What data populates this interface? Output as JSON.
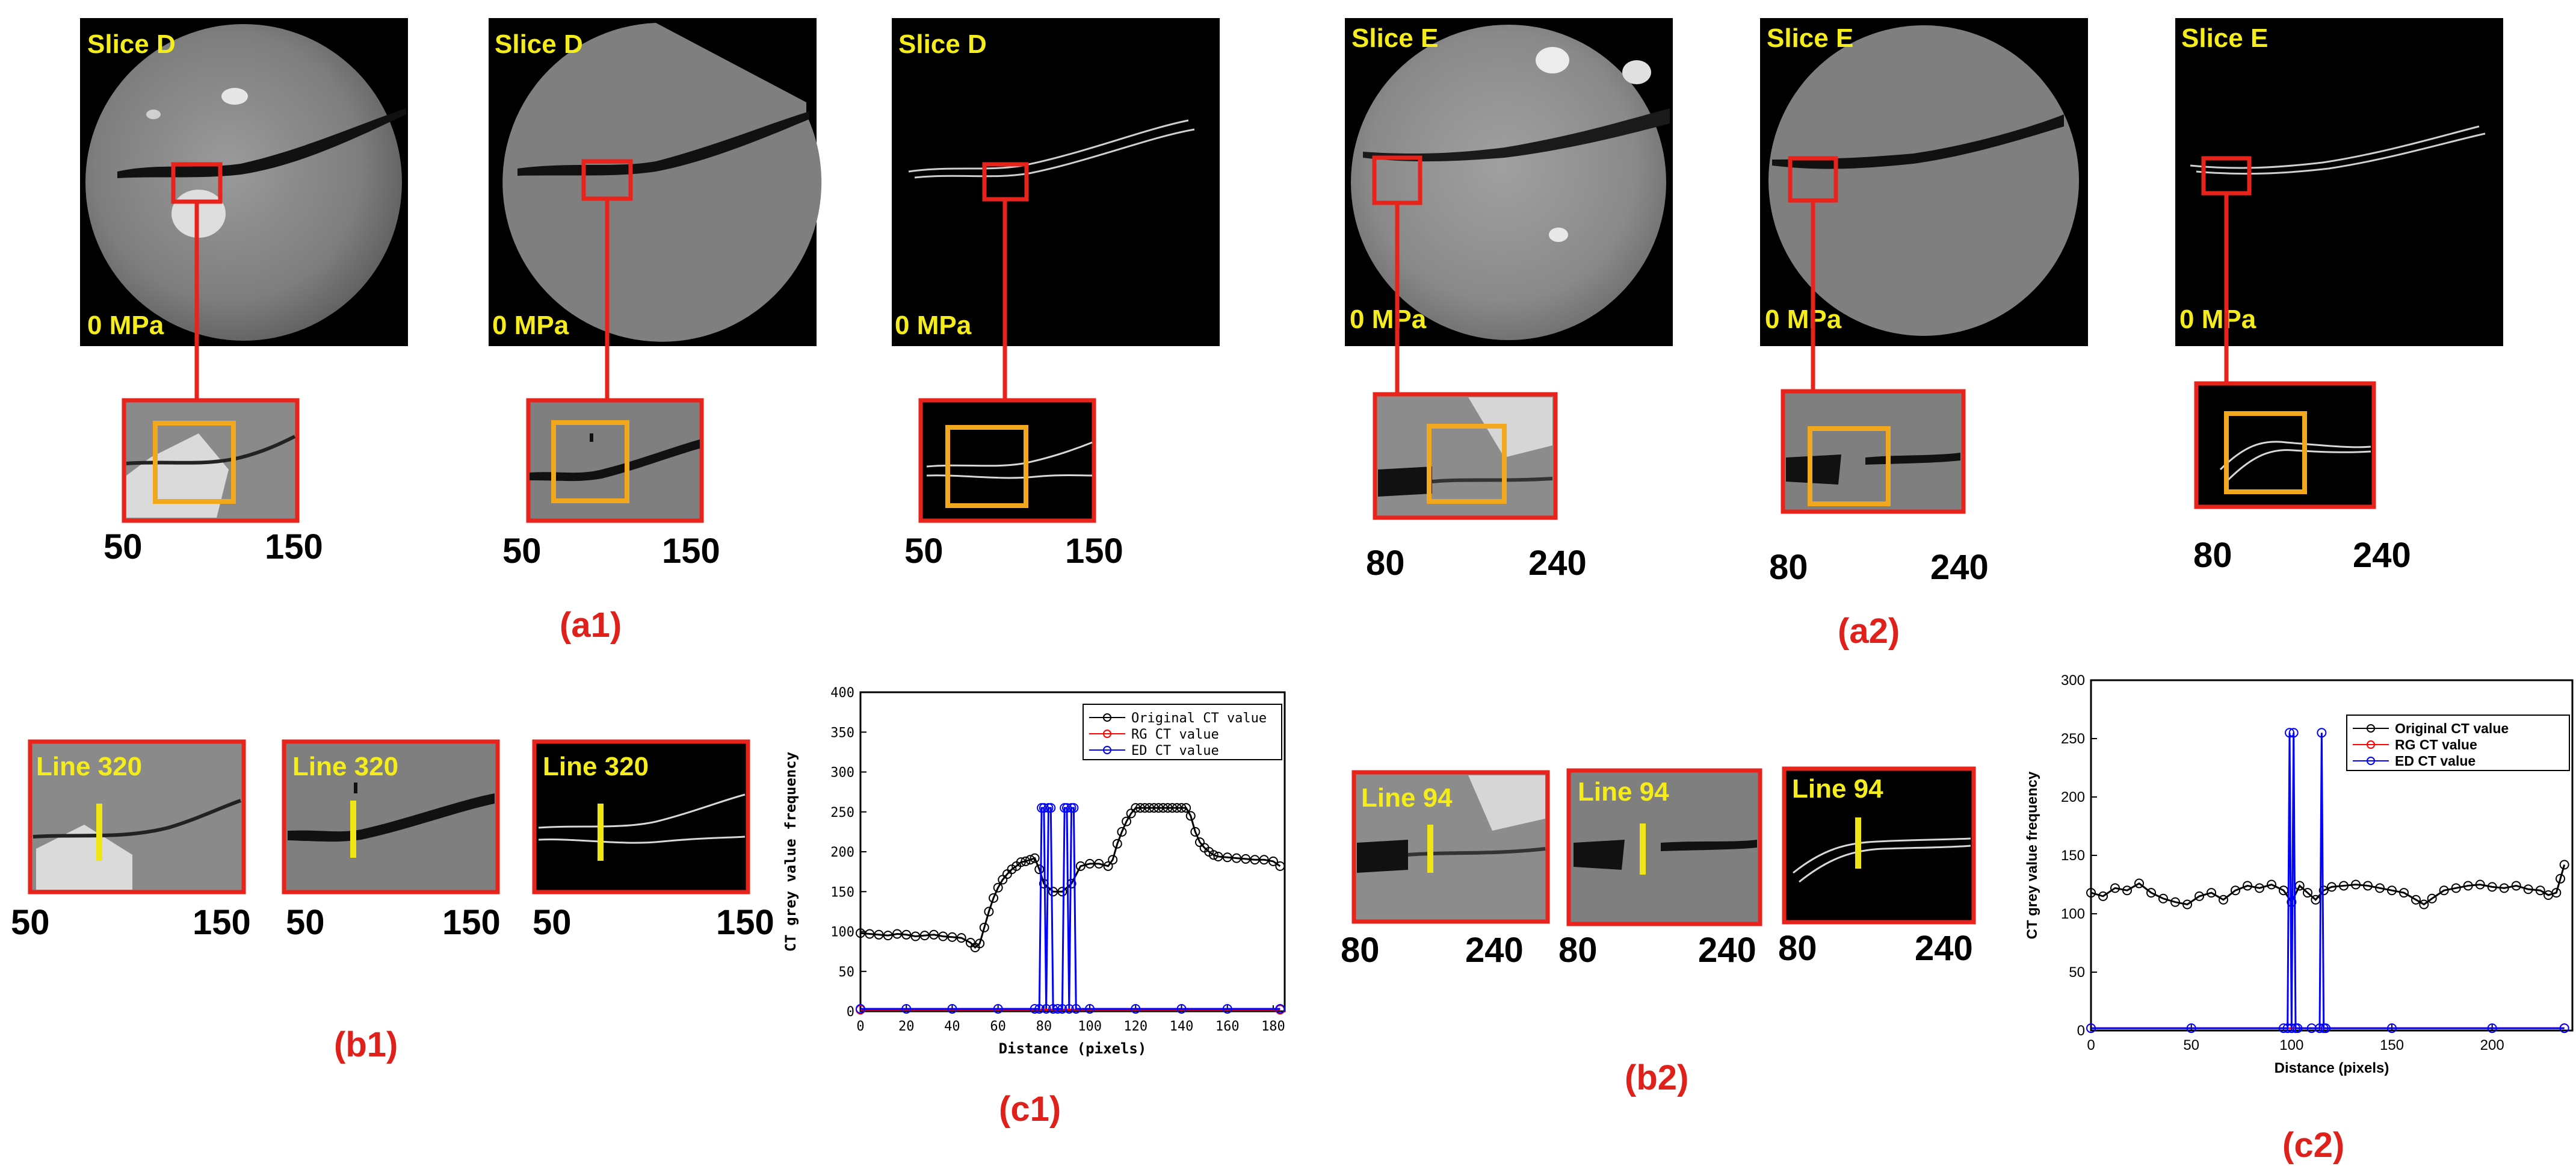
{
  "slice_labels": [
    "Slice D",
    "Slice D",
    "Slice D",
    "Slice E",
    "Slice E",
    "Slice E"
  ],
  "pressure_labels": [
    "0 MPa",
    "0 MPa",
    "0 MPa",
    "0 MPa",
    "0 MPa",
    "0 MPa"
  ],
  "range_a1": [
    "50",
    "150"
  ],
  "range_a2": [
    "80",
    "240"
  ],
  "line_labels_b1": [
    "Line 320",
    "Line 320",
    "Line 320"
  ],
  "line_labels_b2": [
    "Line 94",
    "Line 94",
    "Line 94"
  ],
  "panel_labels": {
    "a1": "(a1)",
    "a2": "(a2)",
    "b1": "(b1)",
    "b2": "(b2)",
    "c1": "(c1)",
    "c2": "(c2)"
  },
  "colors": {
    "panel_label": "#e0201a",
    "box_red": "#e8231c",
    "box_orange": "#f2a81c",
    "slice_text": "#f5ec1b",
    "line_marker": "#f0e614",
    "series_original": "#000000",
    "series_rg": "#ff0000",
    "series_ed": "#0000ff"
  },
  "chart_data": [
    {
      "id": "c1",
      "type": "line",
      "xlabel": "Distance (pixels)",
      "ylabel": "CT grey value frequency",
      "xlim": [
        0,
        185
      ],
      "ylim": [
        0,
        400
      ],
      "xticks": [
        0,
        20,
        40,
        60,
        80,
        100,
        120,
        140,
        160,
        180
      ],
      "yticks": [
        0,
        50,
        100,
        150,
        200,
        250,
        300,
        350,
        400
      ],
      "legend_position": "top-right",
      "series": [
        {
          "name": "Original CT value",
          "color": "#000000",
          "marker": "circle",
          "x": [
            0,
            4,
            8,
            12,
            16,
            20,
            24,
            28,
            32,
            36,
            40,
            44,
            48,
            50,
            52,
            54,
            56,
            58,
            60,
            62,
            64,
            66,
            68,
            70,
            72,
            74,
            76,
            78,
            80,
            84,
            88,
            92,
            96,
            100,
            104,
            108,
            110,
            112,
            114,
            116,
            118,
            120,
            122,
            124,
            126,
            128,
            130,
            132,
            134,
            136,
            138,
            140,
            142,
            144,
            146,
            148,
            150,
            152,
            154,
            156,
            160,
            164,
            168,
            172,
            176,
            180,
            183
          ],
          "y": [
            98,
            97,
            96,
            95,
            97,
            96,
            94,
            95,
            96,
            94,
            93,
            92,
            86,
            80,
            85,
            105,
            125,
            142,
            155,
            165,
            172,
            178,
            182,
            187,
            188,
            190,
            192,
            178,
            160,
            150,
            150,
            160,
            182,
            185,
            185,
            182,
            190,
            210,
            225,
            238,
            248,
            255,
            255,
            255,
            255,
            255,
            255,
            255,
            255,
            255,
            255,
            255,
            255,
            245,
            225,
            212,
            205,
            200,
            196,
            194,
            193,
            192,
            191,
            190,
            190,
            188,
            182
          ]
        },
        {
          "name": "RG CT value",
          "color": "#ff0000",
          "marker": "circle",
          "x": [
            0,
            183
          ],
          "y": [
            2,
            2
          ]
        },
        {
          "name": "ED CT value",
          "color": "#0000ff",
          "marker": "circle",
          "x": [
            0,
            20,
            40,
            60,
            76,
            78,
            79,
            80,
            81,
            82,
            83,
            84,
            86,
            88,
            89,
            90,
            91,
            92,
            93,
            94,
            100,
            120,
            140,
            160,
            183
          ],
          "y": [
            3,
            3,
            3,
            3,
            3,
            3,
            255,
            255,
            3,
            255,
            255,
            3,
            3,
            3,
            255,
            255,
            3,
            255,
            255,
            3,
            3,
            3,
            3,
            3,
            3
          ]
        }
      ]
    },
    {
      "id": "c2",
      "type": "line",
      "xlabel": "Distance (pixels)",
      "ylabel": "CT grey value frequency",
      "xlim": [
        0,
        240
      ],
      "ylim": [
        0,
        300
      ],
      "xticks": [
        0,
        50,
        100,
        150,
        200
      ],
      "yticks": [
        0,
        50,
        100,
        150,
        200,
        250,
        300
      ],
      "legend_position": "top-right",
      "series": [
        {
          "name": "Original CT value",
          "color": "#000000",
          "marker": "circle",
          "x": [
            0,
            6,
            12,
            18,
            24,
            30,
            36,
            42,
            48,
            54,
            60,
            66,
            72,
            78,
            84,
            90,
            96,
            100,
            104,
            108,
            112,
            116,
            120,
            126,
            132,
            138,
            144,
            150,
            156,
            162,
            166,
            170,
            176,
            182,
            188,
            194,
            200,
            206,
            212,
            218,
            224,
            228,
            232,
            234,
            236
          ],
          "y": [
            118,
            115,
            122,
            120,
            126,
            118,
            113,
            110,
            108,
            115,
            118,
            112,
            120,
            124,
            122,
            125,
            120,
            110,
            124,
            118,
            112,
            120,
            123,
            124,
            125,
            124,
            122,
            120,
            118,
            112,
            108,
            113,
            120,
            122,
            124,
            125,
            123,
            122,
            124,
            121,
            120,
            116,
            118,
            130,
            142
          ]
        },
        {
          "name": "RG CT value",
          "color": "#ff0000",
          "marker": "circle",
          "x": [
            0,
            236
          ],
          "y": [
            2,
            2
          ]
        },
        {
          "name": "ED CT value",
          "color": "#0000ff",
          "marker": "circle",
          "x": [
            0,
            50,
            96,
            98,
            99,
            100,
            101,
            102,
            103,
            110,
            114,
            115,
            116,
            117,
            150,
            200,
            236
          ],
          "y": [
            2,
            2,
            2,
            2,
            255,
            2,
            255,
            2,
            2,
            2,
            2,
            255,
            2,
            2,
            2,
            2,
            2
          ]
        }
      ]
    }
  ]
}
